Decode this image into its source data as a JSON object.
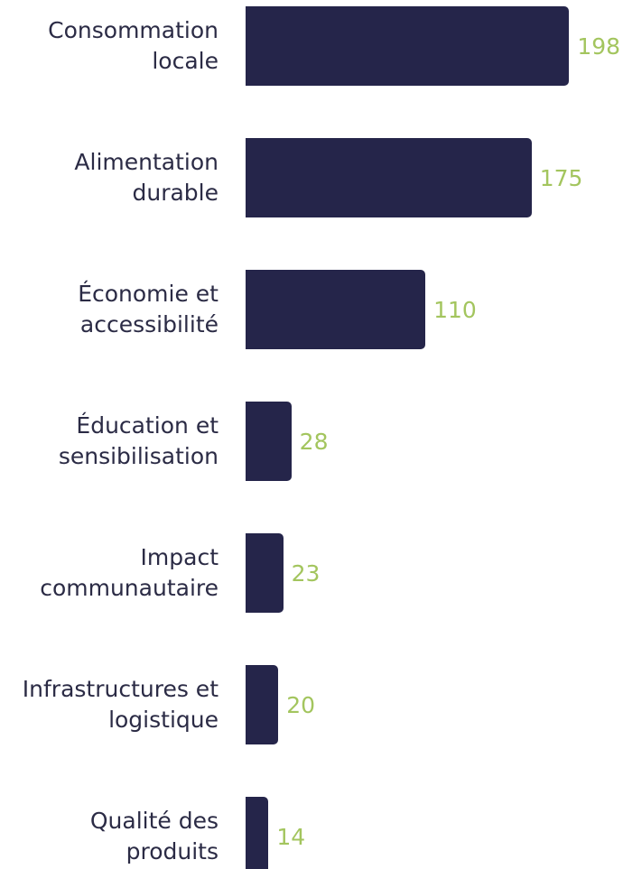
{
  "chart_data": {
    "type": "bar",
    "orientation": "horizontal",
    "categories": [
      "Consommation locale",
      "Alimentation durable",
      "Économie et accessibilité",
      "Éducation et sensibilisation",
      "Impact communautaire",
      "Infrastructures et logistique",
      "Qualité des produits"
    ],
    "values": [
      198,
      175,
      110,
      28,
      23,
      20,
      14
    ],
    "color": "#25254a",
    "label_color": "#a3c55e"
  }
}
